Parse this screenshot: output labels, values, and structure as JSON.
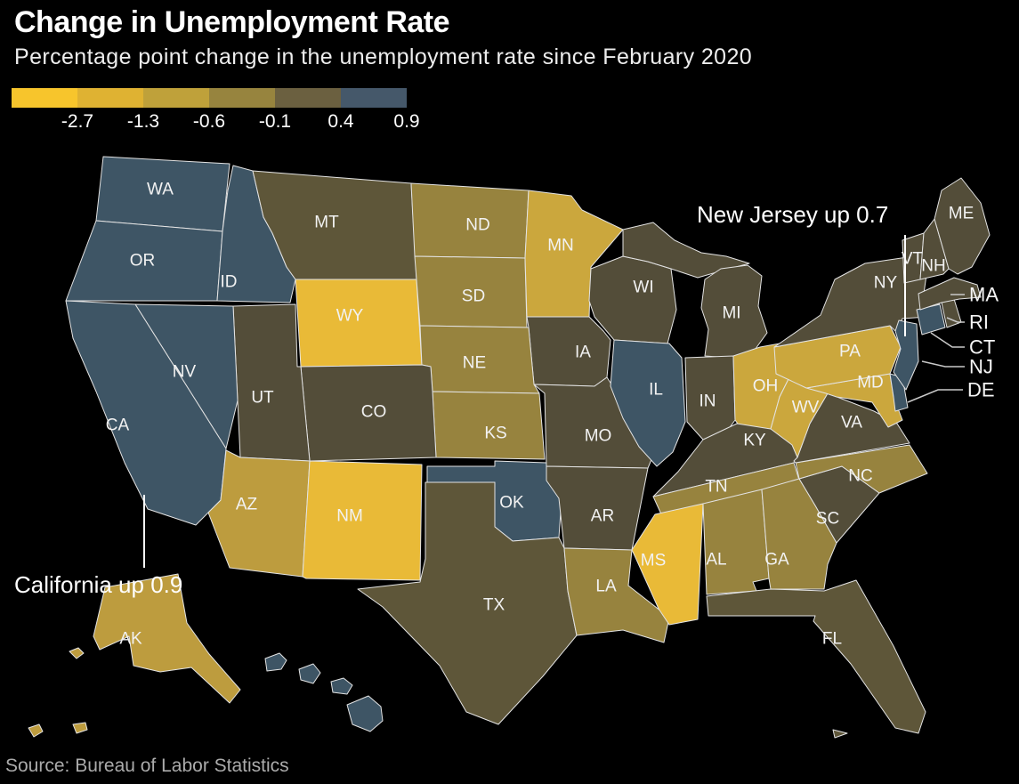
{
  "title": "Change in Unemployment Rate",
  "subtitle": "Percentage point change in the unemployment rate since February 2020",
  "source": "Source: Bureau of Labor Statistics",
  "annotations": {
    "new_jersey": "New Jersey up 0.7",
    "california": "California up 0.9"
  },
  "legend": {
    "tick_labels": [
      "-2.7",
      "-1.3",
      "-0.6",
      "-0.1",
      "0.4",
      "0.9"
    ],
    "colors": [
      "#F7C52C",
      "#DFB232",
      "#BFA13A",
      "#97843E",
      "#6B6040",
      "#45586A"
    ]
  },
  "map": {
    "background": "#000000",
    "border_color": "#E3E3E3",
    "callout_labels": [
      "MA",
      "RI",
      "CT",
      "NJ",
      "DE"
    ]
  },
  "chart_data": {
    "type": "choropleth",
    "region": "United States",
    "metric": "Percentage point change in unemployment rate since February 2020",
    "color_stops": [
      -2.7,
      -1.3,
      -0.6,
      -0.1,
      0.4,
      0.9
    ],
    "known_values": {
      "New Jersey": 0.7,
      "California": 0.9
    },
    "states": [
      {
        "abbr": "WA",
        "color": "#3E5565",
        "level": "increase"
      },
      {
        "abbr": "OR",
        "color": "#3E5565",
        "level": "increase"
      },
      {
        "abbr": "ID",
        "color": "#3E5565",
        "level": "increase"
      },
      {
        "abbr": "MT",
        "color": "#5E5639",
        "level": "slight_decline"
      },
      {
        "abbr": "WY",
        "color": "#E9BA37",
        "level": "large_decline"
      },
      {
        "abbr": "ND",
        "color": "#97833E",
        "level": "moderate_decline"
      },
      {
        "abbr": "SD",
        "color": "#97833E",
        "level": "moderate_decline"
      },
      {
        "abbr": "MN",
        "color": "#CBA73D",
        "level": "decline"
      },
      {
        "abbr": "WI",
        "color": "#534D39",
        "level": "little_change"
      },
      {
        "abbr": "MI",
        "color": "#534D39",
        "level": "little_change"
      },
      {
        "abbr": "IA",
        "color": "#534D39",
        "level": "little_change"
      },
      {
        "abbr": "NE",
        "color": "#97833E",
        "level": "moderate_decline"
      },
      {
        "abbr": "KS",
        "color": "#97833E",
        "level": "moderate_decline"
      },
      {
        "abbr": "CO",
        "color": "#534D39",
        "level": "little_change"
      },
      {
        "abbr": "UT",
        "color": "#534D39",
        "level": "little_change"
      },
      {
        "abbr": "NV",
        "color": "#3E5565",
        "level": "increase"
      },
      {
        "abbr": "CA",
        "color": "#3E5565",
        "level": "increase"
      },
      {
        "abbr": "AZ",
        "color": "#BD9C3E",
        "level": "decline"
      },
      {
        "abbr": "NM",
        "color": "#E9BA37",
        "level": "large_decline"
      },
      {
        "abbr": "OK",
        "color": "#3E5565",
        "level": "increase"
      },
      {
        "abbr": "TX",
        "color": "#5E5639",
        "level": "slight_decline"
      },
      {
        "abbr": "MO",
        "color": "#534D39",
        "level": "little_change"
      },
      {
        "abbr": "AR",
        "color": "#534D39",
        "level": "little_change"
      },
      {
        "abbr": "LA",
        "color": "#97833E",
        "level": "moderate_decline"
      },
      {
        "abbr": "IL",
        "color": "#3E5565",
        "level": "increase"
      },
      {
        "abbr": "IN",
        "color": "#534D39",
        "level": "little_change"
      },
      {
        "abbr": "OH",
        "color": "#CBA73D",
        "level": "decline"
      },
      {
        "abbr": "KY",
        "color": "#534D39",
        "level": "little_change"
      },
      {
        "abbr": "TN",
        "color": "#97833E",
        "level": "moderate_decline"
      },
      {
        "abbr": "MS",
        "color": "#E9BA37",
        "level": "large_decline"
      },
      {
        "abbr": "AL",
        "color": "#97833E",
        "level": "moderate_decline"
      },
      {
        "abbr": "GA",
        "color": "#97833E",
        "level": "moderate_decline"
      },
      {
        "abbr": "SC",
        "color": "#534D39",
        "level": "little_change"
      },
      {
        "abbr": "NC",
        "color": "#97833E",
        "level": "moderate_decline"
      },
      {
        "abbr": "VA",
        "color": "#534D39",
        "level": "little_change"
      },
      {
        "abbr": "WV",
        "color": "#CBA73D",
        "level": "decline"
      },
      {
        "abbr": "MD",
        "color": "#CBA73D",
        "level": "decline"
      },
      {
        "abbr": "PA",
        "color": "#CBA73D",
        "level": "decline"
      },
      {
        "abbr": "NY",
        "color": "#534D39",
        "level": "little_change"
      },
      {
        "abbr": "DE",
        "color": "#3E5565",
        "level": "increase"
      },
      {
        "abbr": "NJ",
        "color": "#3E5565",
        "level": "increase"
      },
      {
        "abbr": "CT",
        "color": "#3E5565",
        "level": "increase"
      },
      {
        "abbr": "RI",
        "color": "#534D39",
        "level": "little_change"
      },
      {
        "abbr": "MA",
        "color": "#534D39",
        "level": "little_change"
      },
      {
        "abbr": "VT",
        "color": "#534D39",
        "level": "little_change"
      },
      {
        "abbr": "NH",
        "color": "#534D39",
        "level": "little_change"
      },
      {
        "abbr": "ME",
        "color": "#534D39",
        "level": "little_change"
      },
      {
        "abbr": "FL",
        "color": "#5E5639",
        "level": "slight_decline"
      },
      {
        "abbr": "HI",
        "color": "#3E5565",
        "level": "increase"
      },
      {
        "abbr": "AK",
        "color": "#BD9C3E",
        "level": "decline"
      }
    ]
  }
}
